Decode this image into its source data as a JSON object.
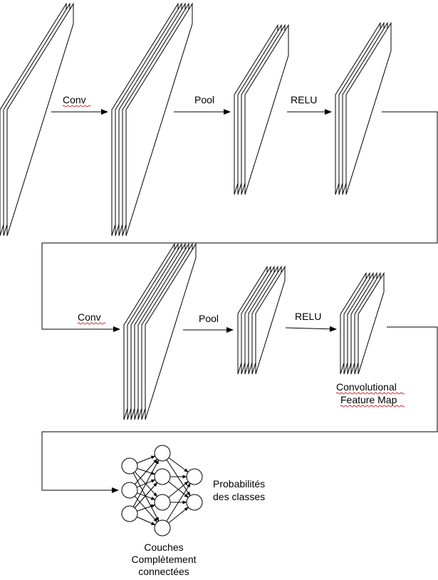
{
  "labels": {
    "conv1": "Conv",
    "pool1": "Pool",
    "relu1": "RELU",
    "conv2": "Conv",
    "pool2": "Pool",
    "relu2": "RELU",
    "feature_map_line1": "Convolutional",
    "feature_map_line2": "Feature Map",
    "probabilities_line1": "Probabilités",
    "probabilities_line2": "des classes",
    "fc_line1": "Couches",
    "fc_line2": "Complètement",
    "fc_line3": "connectées"
  },
  "network": {
    "input_nodes": 3,
    "hidden1_nodes": 4,
    "hidden2_nodes": 4,
    "output_nodes": 2
  }
}
